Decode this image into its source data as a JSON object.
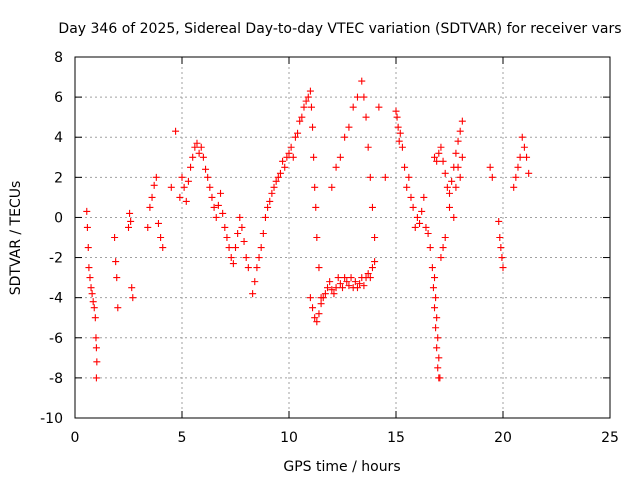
{
  "chart_data": {
    "type": "scatter",
    "title": "Day 346 of 2025, Sidereal Day-to-day VTEC variation (SDTVAR) for receiver vars",
    "xlabel": "GPS time / hours",
    "ylabel": "SDTVAR / TECUs",
    "xlim": [
      0,
      25
    ],
    "ylim": [
      -10,
      8
    ],
    "xticks": [
      0,
      5,
      10,
      15,
      20,
      25
    ],
    "yticks": [
      8,
      6,
      4,
      2,
      0,
      -2,
      -4,
      -6,
      -8,
      -10
    ],
    "xtick_labels": [
      "0",
      "5",
      "10",
      "15",
      "20",
      "25"
    ],
    "ytick_labels": [
      "8",
      "6",
      "4",
      "2",
      "0",
      "-2",
      "-4",
      "-6",
      "-8",
      "-10"
    ],
    "grid": true,
    "legend": "none",
    "marker": "plus",
    "color": "#ff0000",
    "series": [
      {
        "name": "SDTVAR",
        "x": [
          0.55,
          0.58,
          0.62,
          0.65,
          0.7,
          0.75,
          0.8,
          0.85,
          0.9,
          0.95,
          0.98,
          1.0,
          1.0,
          1.02,
          1.85,
          1.9,
          1.95,
          2.0,
          2.5,
          2.55,
          2.6,
          2.65,
          2.7,
          3.4,
          3.5,
          3.6,
          3.7,
          3.8,
          3.9,
          4.0,
          4.1,
          4.5,
          4.7,
          4.9,
          5.0,
          5.1,
          5.2,
          5.3,
          5.4,
          5.5,
          5.6,
          5.7,
          5.8,
          5.9,
          6.0,
          6.1,
          6.2,
          6.3,
          6.4,
          6.5,
          6.6,
          6.7,
          6.8,
          6.9,
          7.0,
          7.1,
          7.2,
          7.3,
          7.4,
          7.5,
          7.6,
          7.7,
          7.8,
          7.9,
          8.0,
          8.1,
          8.3,
          8.4,
          8.5,
          8.6,
          8.7,
          8.8,
          8.9,
          9.0,
          9.1,
          9.2,
          9.3,
          9.4,
          9.5,
          9.6,
          9.7,
          9.8,
          9.9,
          10.0,
          10.1,
          10.2,
          10.3,
          10.4,
          10.5,
          10.6,
          10.7,
          10.8,
          10.9,
          11.0,
          11.05,
          11.1,
          11.15,
          11.2,
          11.25,
          11.3,
          11.4,
          11.5,
          11.0,
          11.1,
          11.2,
          11.3,
          11.4,
          11.5,
          11.6,
          11.7,
          11.8,
          11.9,
          12.0,
          12.1,
          12.2,
          12.3,
          12.4,
          12.5,
          12.6,
          12.7,
          12.8,
          12.9,
          13.0,
          13.1,
          13.2,
          13.3,
          13.4,
          13.5,
          13.6,
          13.7,
          13.8,
          13.9,
          14.0,
          12.0,
          12.2,
          12.4,
          12.6,
          12.8,
          13.0,
          13.2,
          13.4,
          13.5,
          13.6,
          13.7,
          13.8,
          13.9,
          14.0,
          14.2,
          14.5,
          15.0,
          15.05,
          15.1,
          15.15,
          15.2,
          15.3,
          15.4,
          15.5,
          15.6,
          15.7,
          15.8,
          15.9,
          16.0,
          16.1,
          16.2,
          16.3,
          16.4,
          16.5,
          16.6,
          16.7,
          16.75,
          16.8,
          16.85,
          16.9,
          16.95,
          17.0,
          17.1,
          17.2,
          17.3,
          17.5,
          17.7,
          17.8,
          17.9,
          18.0,
          18.1,
          16.8,
          16.9,
          17.0,
          17.1,
          17.2,
          17.3,
          17.4,
          17.5,
          17.6,
          17.7,
          17.8,
          17.9,
          18.0,
          18.1,
          16.8,
          16.85,
          16.9,
          16.95,
          17.0,
          17.05,
          19.4,
          19.5,
          19.8,
          19.85,
          19.9,
          19.95,
          20.0,
          20.5,
          20.6,
          20.7,
          20.8,
          20.9,
          21.0,
          21.1,
          21.2
        ],
        "y": [
          0.3,
          -0.5,
          -1.5,
          -2.5,
          -3.0,
          -3.5,
          -3.8,
          -4.2,
          -4.5,
          -5.0,
          -6.0,
          -6.5,
          -8.0,
          -7.2,
          -1.0,
          -2.2,
          -3.0,
          -4.5,
          -0.5,
          0.2,
          -0.2,
          -3.5,
          -4.0,
          -0.5,
          0.5,
          1.0,
          1.6,
          2.0,
          -0.3,
          -1.0,
          -1.5,
          1.5,
          4.3,
          1.0,
          2.0,
          1.5,
          0.8,
          1.8,
          2.5,
          3.0,
          3.5,
          3.7,
          3.2,
          3.5,
          3.0,
          2.4,
          2.0,
          1.5,
          1.0,
          0.5,
          0.0,
          0.6,
          1.2,
          0.2,
          -0.5,
          -1.0,
          -1.5,
          -2.0,
          -2.3,
          -1.5,
          -0.8,
          0.0,
          -0.5,
          -1.2,
          -2.0,
          -2.5,
          -3.8,
          -3.2,
          -2.5,
          -2.0,
          -1.5,
          -0.8,
          0.0,
          0.5,
          0.8,
          1.2,
          1.5,
          1.8,
          2.0,
          2.2,
          2.8,
          2.5,
          3.0,
          3.2,
          3.5,
          3.0,
          4.0,
          4.2,
          4.8,
          5.0,
          5.5,
          5.8,
          6.0,
          6.3,
          5.5,
          4.5,
          3.0,
          1.5,
          0.5,
          -1.0,
          -2.5,
          -4.0,
          -4.0,
          -4.5,
          -5.0,
          -5.2,
          -4.8,
          -4.3,
          -4.0,
          -3.8,
          -3.5,
          -3.2,
          -3.6,
          -3.8,
          -3.5,
          -3.0,
          -3.3,
          -3.5,
          -3.0,
          -3.2,
          -3.4,
          -3.0,
          -3.5,
          -3.2,
          -3.5,
          -3.3,
          -3.0,
          -3.4,
          -3.0,
          -2.8,
          -3.0,
          -2.5,
          -2.2,
          1.5,
          2.5,
          3.0,
          4.0,
          4.5,
          5.5,
          6.0,
          6.8,
          6.0,
          5.0,
          3.5,
          2.0,
          0.5,
          -1.0,
          5.5,
          2.0,
          5.3,
          5.0,
          4.5,
          3.8,
          4.2,
          3.5,
          2.5,
          1.5,
          2.0,
          1.0,
          0.5,
          -0.5,
          0.0,
          -0.3,
          0.3,
          1.0,
          -0.5,
          -0.8,
          -1.5,
          -2.5,
          -3.5,
          -4.5,
          -5.5,
          -6.5,
          -7.5,
          -8.0,
          -2.0,
          -1.5,
          -1.0,
          0.5,
          0.0,
          1.5,
          2.5,
          2.0,
          3.0,
          3.0,
          2.8,
          3.2,
          3.5,
          2.8,
          2.2,
          1.5,
          1.2,
          1.8,
          2.5,
          3.2,
          3.8,
          4.3,
          4.8,
          -3.0,
          -4.0,
          -5.0,
          -6.0,
          -7.0,
          -8.0,
          2.5,
          2.0,
          -0.2,
          -1.0,
          -1.5,
          -2.0,
          -2.5,
          1.5,
          2.0,
          2.5,
          3.0,
          4.0,
          3.5,
          3.0,
          2.2
        ]
      }
    ]
  }
}
